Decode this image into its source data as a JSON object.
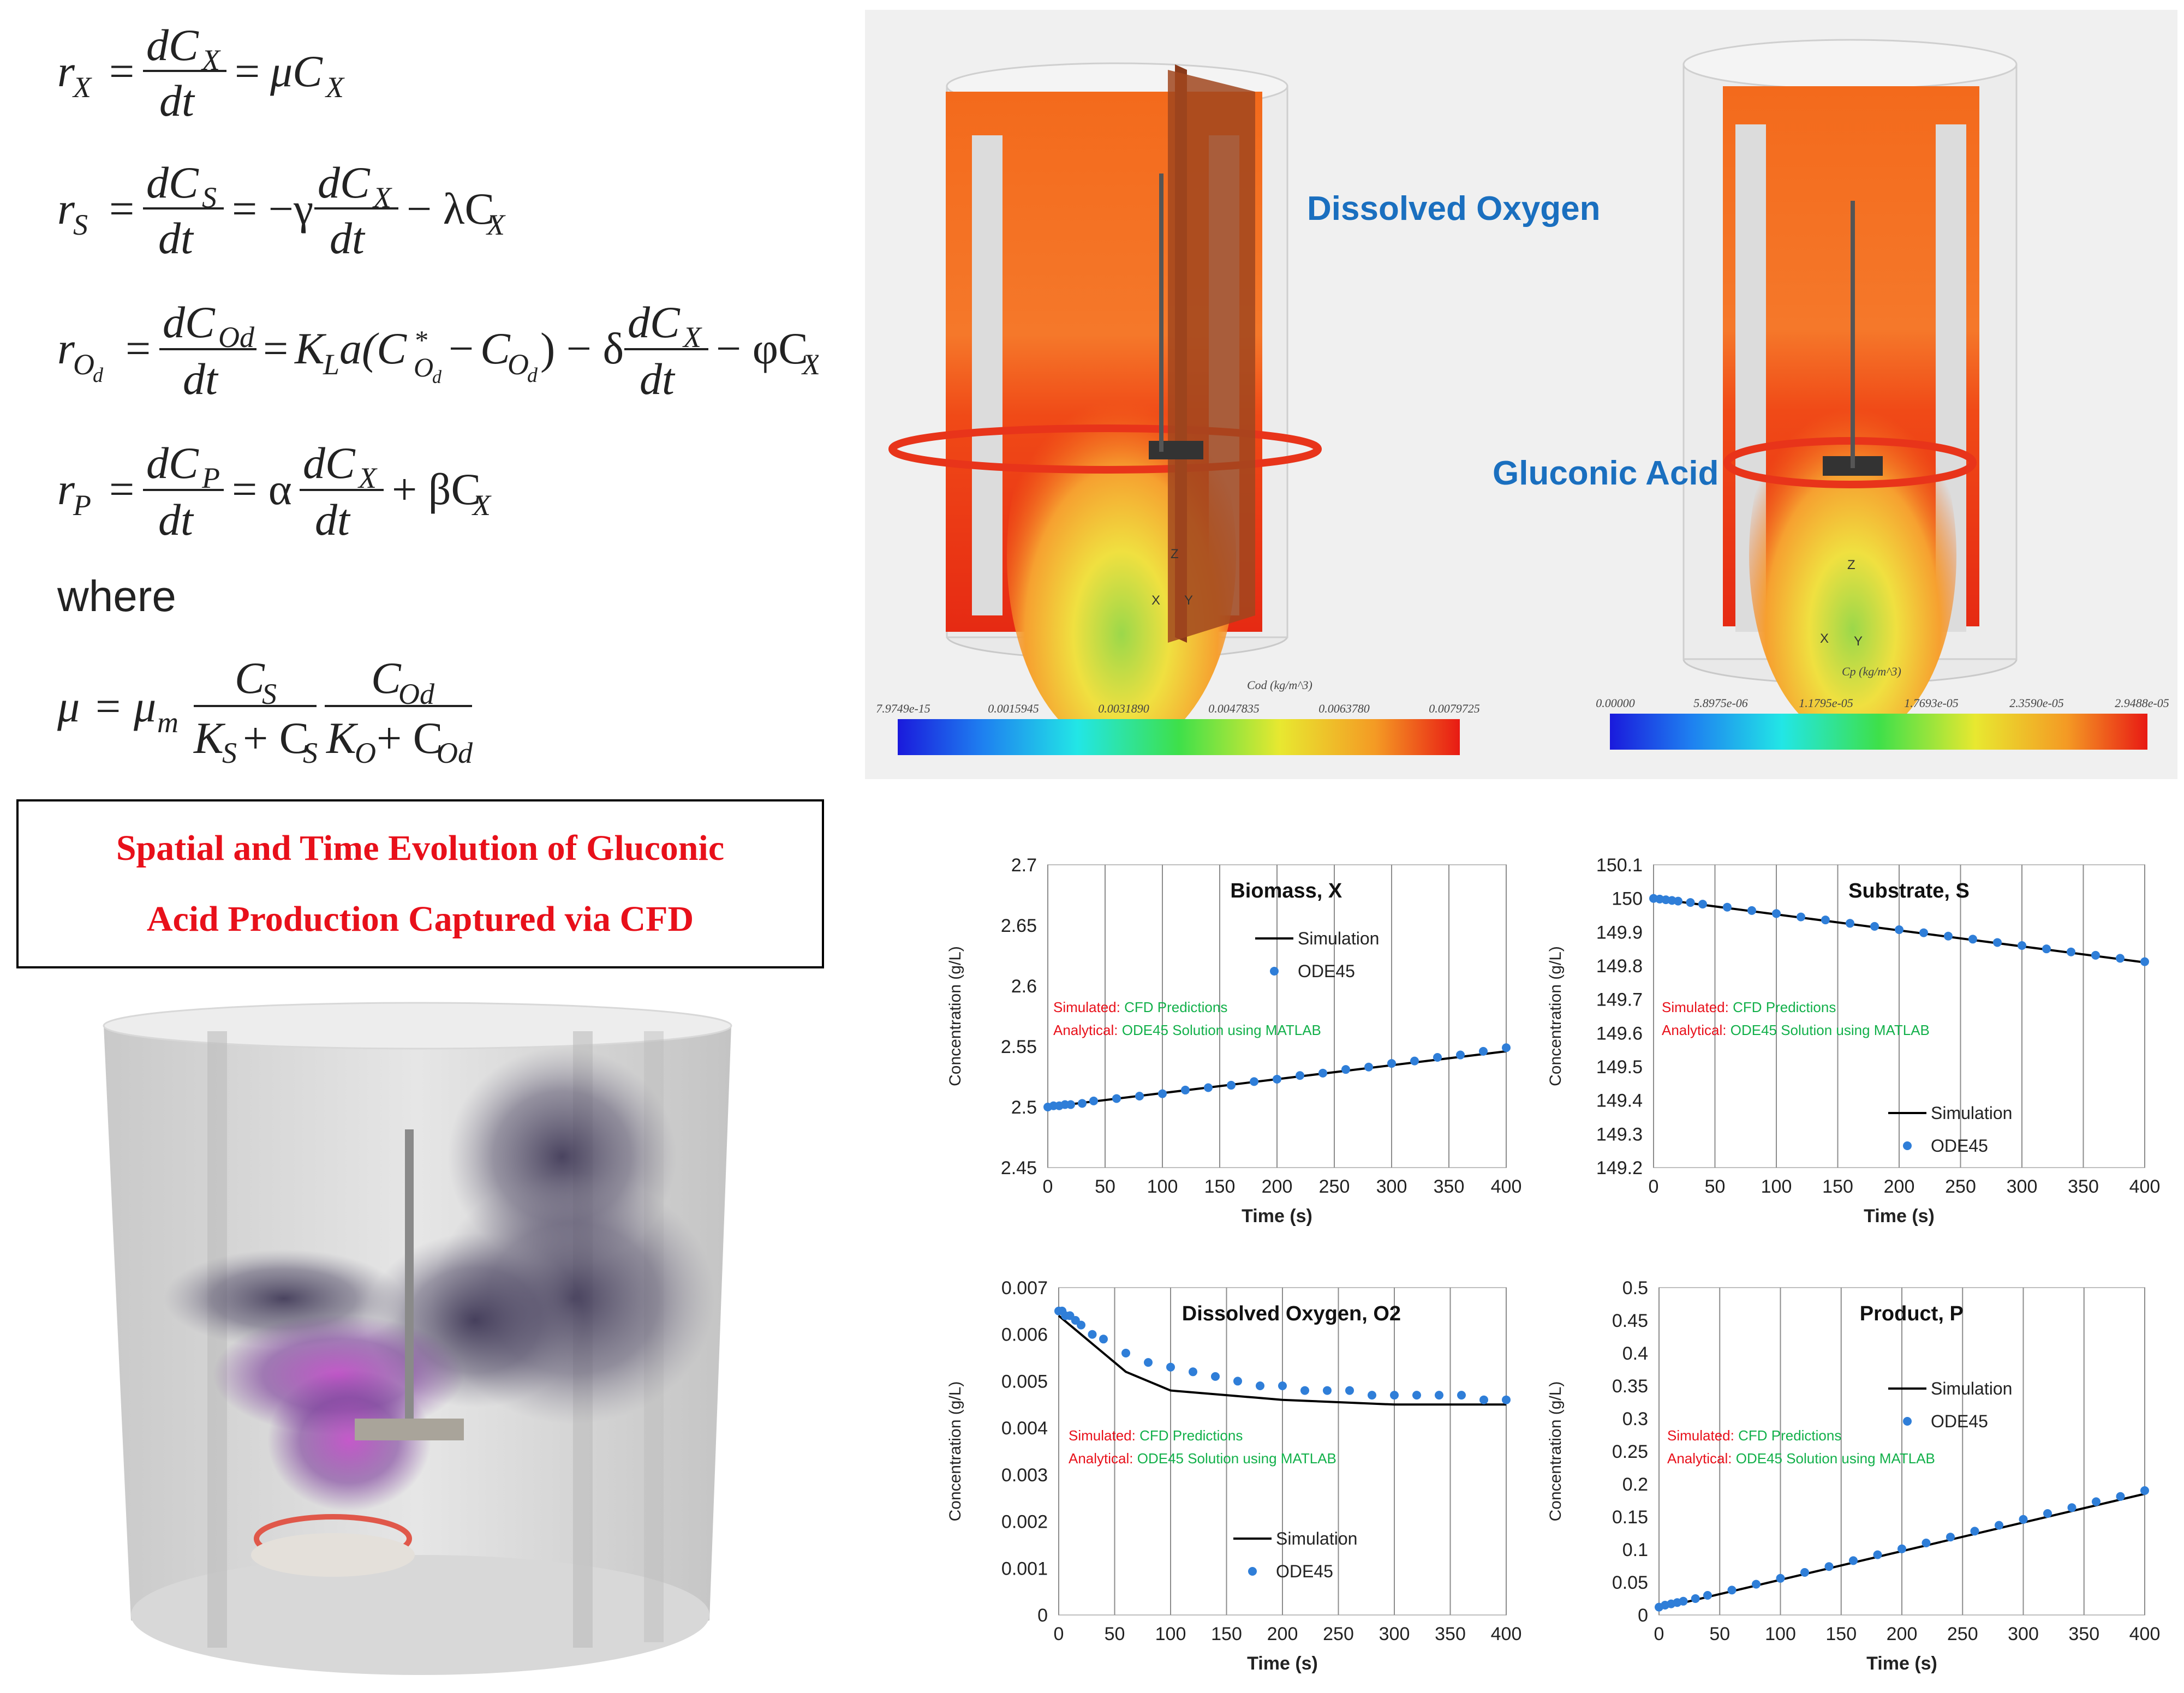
{
  "equations": {
    "rx_lhs": "r",
    "rx_sub": "X",
    "where": "where",
    "lines": [
      "r_X = dC_X/dt = μC_X",
      "r_S = dC_S/dt = −γ dC_X/dt − λC_X",
      "r_Od = dC_Od/dt = K_L a(C*_Od − C_Od) − δ dC_X/dt − φC_X",
      "r_P = dC_P/dt = α dC_X/dt + βC_X",
      "μ = μ_m C_S/(K_S + C_S) · C_Od/(K_O + C_Od)"
    ]
  },
  "title_box": {
    "line1": "Spatial and Time Evolution of Gluconic",
    "line2": "Acid Production Captured via CFD"
  },
  "cfd_contours": {
    "label_oxygen": "Dissolved Oxygen",
    "label_acid": "Gluconic Acid",
    "label_color": "#1a6fbf",
    "left_legend_title": "Cod (kg/m^3)",
    "left_ticks": [
      "7.9749e-15",
      "0.0015945",
      "0.0031890",
      "0.0047835",
      "0.0063780",
      "0.0079725"
    ],
    "right_legend_title": "Cp (kg/m^3)",
    "right_ticks": [
      "0.00000",
      "5.8975e-06",
      "1.1795e-05",
      "1.7693e-05",
      "2.3590e-05",
      "2.9488e-05"
    ],
    "axis_x": "X",
    "axis_y": "Y",
    "axis_z": "Z"
  },
  "legend_common": {
    "sim": "Simulation",
    "ode": "ODE45"
  },
  "annotations": {
    "sim_prefix": "Simulated:",
    "sim_text": "CFD Predictions",
    "ana_prefix": "Analytical:",
    "ana_text": "ODE45 Solution using MATLAB"
  },
  "chart_data": [
    {
      "type": "line",
      "title": "Biomass, X",
      "xlabel": "Time (s)",
      "ylabel": "Concentration (g/L)",
      "xlim": [
        0,
        400
      ],
      "ylim": [
        2.45,
        2.7
      ],
      "xticks": [
        "0",
        "50",
        "100",
        "150",
        "200",
        "250",
        "300",
        "350",
        "400"
      ],
      "yticks": [
        "2.45",
        "2.5",
        "2.55",
        "2.6",
        "2.65",
        "2.7"
      ],
      "series": [
        {
          "name": "Simulation",
          "x": [
            0,
            400
          ],
          "y": [
            2.5,
            2.546
          ]
        },
        {
          "name": "ODE45",
          "x": [
            0,
            5,
            10,
            15,
            20,
            30,
            40,
            60,
            80,
            100,
            120,
            140,
            160,
            180,
            200,
            220,
            240,
            260,
            280,
            300,
            320,
            340,
            360,
            380,
            400
          ],
          "y": [
            2.5,
            2.501,
            2.501,
            2.502,
            2.502,
            2.503,
            2.505,
            2.507,
            2.509,
            2.511,
            2.514,
            2.516,
            2.518,
            2.521,
            2.523,
            2.526,
            2.528,
            2.531,
            2.533,
            2.536,
            2.538,
            2.541,
            2.543,
            2.546,
            2.549
          ]
        }
      ],
      "legend_position": "right"
    },
    {
      "type": "line",
      "title": "Substrate, S",
      "xlabel": "Time (s)",
      "ylabel": "Concentration (g/L)",
      "xlim": [
        0,
        400
      ],
      "ylim": [
        149.2,
        150.1
      ],
      "xticks": [
        "0",
        "50",
        "100",
        "150",
        "200",
        "250",
        "300",
        "350",
        "400"
      ],
      "yticks": [
        "149.2",
        "149.3",
        "149.4",
        "149.5",
        "149.6",
        "149.7",
        "149.8",
        "149.9",
        "150",
        "150.1"
      ],
      "series": [
        {
          "name": "Simulation",
          "x": [
            0,
            400
          ],
          "y": [
            150.0,
            149.81
          ]
        },
        {
          "name": "ODE45",
          "x": [
            0,
            5,
            10,
            15,
            20,
            30,
            40,
            60,
            80,
            100,
            120,
            140,
            160,
            180,
            200,
            220,
            240,
            260,
            280,
            300,
            320,
            340,
            360,
            380,
            400
          ],
          "y": [
            150.0,
            149.998,
            149.996,
            149.994,
            149.992,
            149.988,
            149.983,
            149.974,
            149.964,
            149.955,
            149.945,
            149.936,
            149.926,
            149.917,
            149.907,
            149.898,
            149.888,
            149.879,
            149.869,
            149.86,
            149.85,
            149.841,
            149.831,
            149.822,
            149.812
          ]
        }
      ],
      "legend_position": "bottom-right"
    },
    {
      "type": "line",
      "title": "Dissolved Oxygen, O2",
      "xlabel": "Time (s)",
      "ylabel": "Concentration (g/L)",
      "xlim": [
        0,
        400
      ],
      "ylim": [
        0,
        0.007
      ],
      "xticks": [
        "0",
        "50",
        "100",
        "150",
        "200",
        "250",
        "300",
        "350",
        "400"
      ],
      "yticks": [
        "0",
        "0.001",
        "0.002",
        "0.003",
        "0.004",
        "0.005",
        "0.006",
        "0.007"
      ],
      "series": [
        {
          "name": "Simulation",
          "x": [
            0,
            10,
            20,
            30,
            40,
            50,
            60,
            70,
            80,
            90,
            100,
            125,
            150,
            175,
            200,
            250,
            300,
            350,
            400
          ],
          "y": [
            0.0064,
            0.0062,
            0.006,
            0.0058,
            0.0056,
            0.0054,
            0.0052,
            0.0051,
            0.005,
            0.0049,
            0.0048,
            0.00475,
            0.0047,
            0.00465,
            0.0046,
            0.00455,
            0.0045,
            0.0045,
            0.0045
          ]
        },
        {
          "name": "ODE45",
          "x": [
            0,
            3,
            6,
            10,
            15,
            20,
            30,
            40,
            60,
            80,
            100,
            120,
            140,
            160,
            180,
            200,
            220,
            240,
            260,
            280,
            300,
            320,
            340,
            360,
            380,
            400
          ],
          "y": [
            0.0065,
            0.0065,
            0.0064,
            0.0064,
            0.0063,
            0.0062,
            0.006,
            0.0059,
            0.0056,
            0.0054,
            0.0053,
            0.0052,
            0.0051,
            0.005,
            0.0049,
            0.0049,
            0.0048,
            0.0048,
            0.0048,
            0.0047,
            0.0047,
            0.0047,
            0.0047,
            0.0047,
            0.0046,
            0.0046
          ]
        }
      ],
      "legend_position": "bottom-right"
    },
    {
      "type": "line",
      "title": "Product, P",
      "xlabel": "Time (s)",
      "ylabel": "Concentration (g/L)",
      "xlim": [
        0,
        400
      ],
      "ylim": [
        0,
        0.5
      ],
      "xticks": [
        "0",
        "50",
        "100",
        "150",
        "200",
        "250",
        "300",
        "350",
        "400"
      ],
      "yticks": [
        "0",
        "0.05",
        "0.1",
        "0.15",
        "0.2",
        "0.25",
        "0.3",
        "0.35",
        "0.4",
        "0.45",
        "0.5"
      ],
      "series": [
        {
          "name": "Simulation",
          "x": [
            0,
            400
          ],
          "y": [
            0.01,
            0.185
          ]
        },
        {
          "name": "ODE45",
          "x": [
            0,
            5,
            10,
            15,
            20,
            30,
            40,
            60,
            80,
            100,
            120,
            140,
            160,
            180,
            200,
            220,
            240,
            260,
            280,
            300,
            320,
            340,
            360,
            380,
            400
          ],
          "y": [
            0.012,
            0.015,
            0.017,
            0.019,
            0.021,
            0.025,
            0.03,
            0.038,
            0.047,
            0.056,
            0.065,
            0.074,
            0.083,
            0.092,
            0.101,
            0.11,
            0.119,
            0.128,
            0.137,
            0.146,
            0.155,
            0.164,
            0.173,
            0.181,
            0.19
          ]
        }
      ],
      "legend_position": "right"
    }
  ],
  "colors": {
    "sim_line": "#000000",
    "ode_marker": "#2f7ed8",
    "title_red": "#e8101a",
    "annotation_red": "#e8101a",
    "annotation_green": "#12b04a",
    "label_blue": "#1a6fbf"
  }
}
